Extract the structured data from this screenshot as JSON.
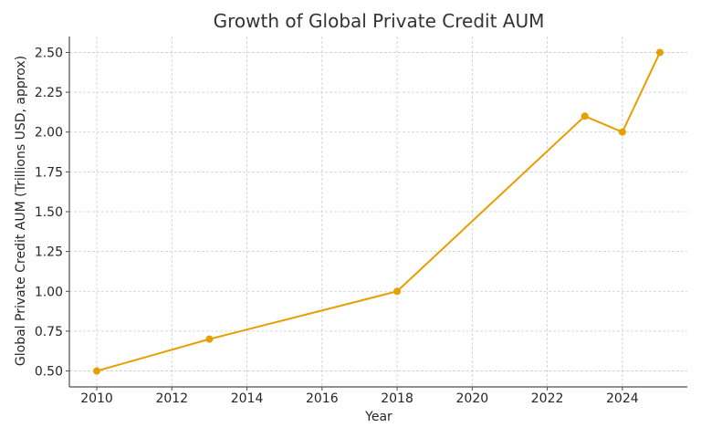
{
  "chart_data": {
    "type": "line",
    "title": "Growth of Global Private Credit AUM",
    "xlabel": "Year",
    "ylabel": "Global Private Credit AUM (Trillions USD, approx)",
    "x": [
      2010,
      2013,
      2018,
      2023,
      2024,
      2025
    ],
    "series": [
      {
        "name": "Global Private Credit AUM",
        "values": [
          0.5,
          0.7,
          1.0,
          2.1,
          2.0,
          2.5
        ],
        "color": "#E69F00"
      }
    ],
    "xticks": [
      "2010",
      "2012",
      "2014",
      "2016",
      "2018",
      "2020",
      "2022",
      "2024"
    ],
    "yticks": [
      "0.50",
      "0.75",
      "1.00",
      "1.25",
      "1.50",
      "1.75",
      "2.00",
      "2.25",
      "2.50"
    ],
    "xlim": [
      2009.27,
      2025.73
    ],
    "ylim": [
      0.4,
      2.6
    ],
    "grid": true,
    "legend": null,
    "marker": "circle"
  }
}
